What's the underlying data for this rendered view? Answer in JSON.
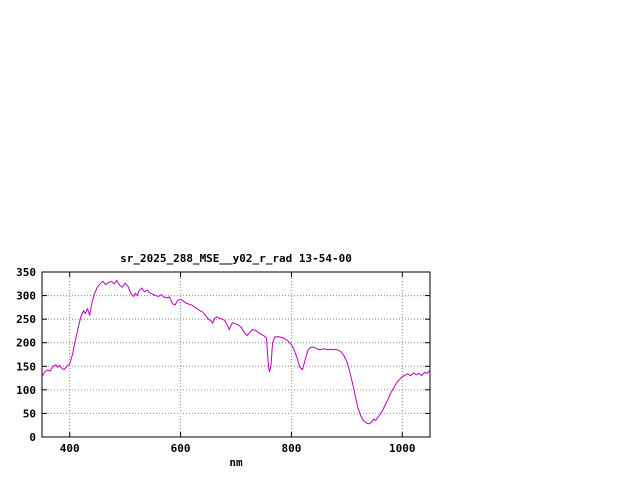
{
  "window": {
    "background": "#ffffff"
  },
  "chart_data": {
    "type": "line",
    "title": "sr_2025_288_MSE__y02_r_rad 13-54-00",
    "xlabel": "nm",
    "ylabel": "",
    "xlim": [
      350,
      1050
    ],
    "ylim": [
      0,
      350
    ],
    "x_ticks": [
      400,
      600,
      800,
      1000
    ],
    "y_ticks": [
      0,
      50,
      100,
      150,
      200,
      250,
      300,
      350
    ],
    "grid": true,
    "legend": false,
    "line_color": "#c000c0",
    "grid_color": "#888888",
    "border_color": "#000000",
    "series": [
      {
        "x": [
          350,
          355,
          360,
          365,
          370,
          375,
          378,
          382,
          386,
          390,
          395,
          400,
          405,
          410,
          415,
          420,
          425,
          428,
          432,
          436,
          440,
          445,
          450,
          455,
          460,
          465,
          470,
          475,
          480,
          485,
          490,
          495,
          500,
          505,
          510,
          515,
          518,
          522,
          525,
          530,
          535,
          540,
          545,
          550,
          555,
          560,
          565,
          570,
          575,
          580,
          585,
          590,
          595,
          600,
          605,
          610,
          615,
          620,
          625,
          630,
          635,
          640,
          645,
          650,
          655,
          658,
          662,
          665,
          670,
          675,
          680,
          685,
          688,
          692,
          695,
          700,
          705,
          710,
          715,
          720,
          725,
          730,
          735,
          740,
          745,
          750,
          755,
          758,
          760,
          763,
          766,
          770,
          775,
          780,
          785,
          790,
          795,
          800,
          805,
          810,
          815,
          820,
          825,
          830,
          835,
          840,
          845,
          850,
          855,
          860,
          865,
          870,
          875,
          880,
          885,
          890,
          895,
          900,
          905,
          910,
          915,
          920,
          925,
          930,
          935,
          940,
          945,
          948,
          952,
          955,
          960,
          965,
          970,
          975,
          980,
          985,
          990,
          995,
          1000,
          1005,
          1010,
          1015,
          1020,
          1025,
          1030,
          1035,
          1040,
          1045,
          1050
        ],
        "y": [
          128,
          138,
          142,
          140,
          150,
          153,
          148,
          152,
          145,
          143,
          150,
          155,
          175,
          205,
          230,
          255,
          268,
          262,
          272,
          258,
          285,
          305,
          318,
          325,
          330,
          323,
          328,
          330,
          325,
          332,
          322,
          318,
          326,
          320,
          305,
          298,
          305,
          300,
          310,
          316,
          308,
          312,
          305,
          303,
          300,
          298,
          302,
          297,
          295,
          297,
          283,
          280,
          290,
          292,
          288,
          284,
          282,
          280,
          276,
          272,
          268,
          265,
          258,
          250,
          246,
          242,
          252,
          255,
          252,
          250,
          247,
          235,
          228,
          240,
          242,
          240,
          237,
          232,
          222,
          215,
          222,
          228,
          226,
          222,
          218,
          215,
          210,
          160,
          138,
          150,
          200,
          212,
          213,
          212,
          210,
          207,
          202,
          196,
          185,
          168,
          148,
          143,
          165,
          185,
          190,
          191,
          188,
          185,
          186,
          187,
          185,
          186,
          185,
          186,
          184,
          180,
          172,
          160,
          140,
          115,
          88,
          62,
          45,
          35,
          30,
          28,
          32,
          38,
          35,
          40,
          48,
          58,
          70,
          82,
          95,
          105,
          115,
          122,
          128,
          131,
          134,
          130,
          136,
          132,
          135,
          130,
          137,
          135,
          142
        ]
      }
    ]
  }
}
